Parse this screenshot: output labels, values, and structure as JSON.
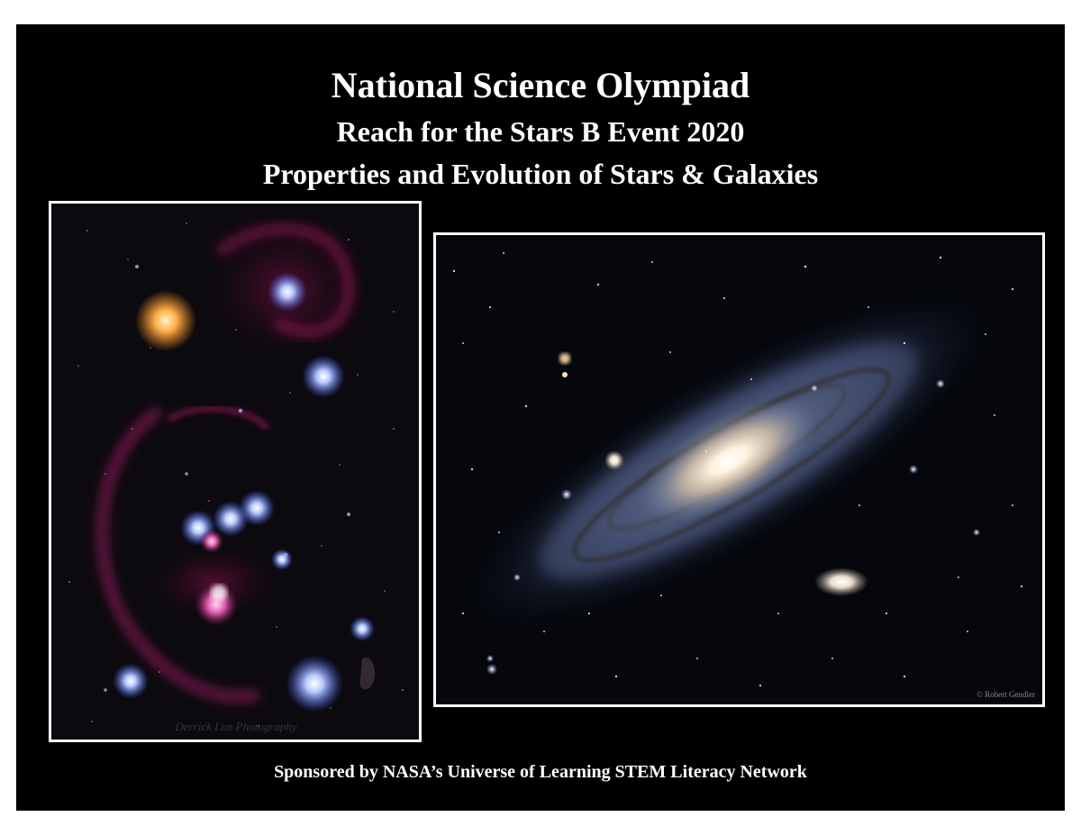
{
  "header": {
    "title": "National Science Olympiad",
    "subtitle": "Reach for the Stars B Event 2020",
    "tagline": "Properties and Evolution of Stars & Galaxies"
  },
  "images": {
    "orion": {
      "watermark": "Derrick Lim Photography"
    },
    "andromeda": {
      "watermark": "© Robert Gendler"
    }
  },
  "footer": {
    "sponsor": "Sponsored by NASA’s Universe of Learning STEM Literacy Network"
  },
  "colors": {
    "background": "#000000",
    "page": "#ffffff",
    "text": "#ffffff",
    "frame": "#ffffff"
  }
}
